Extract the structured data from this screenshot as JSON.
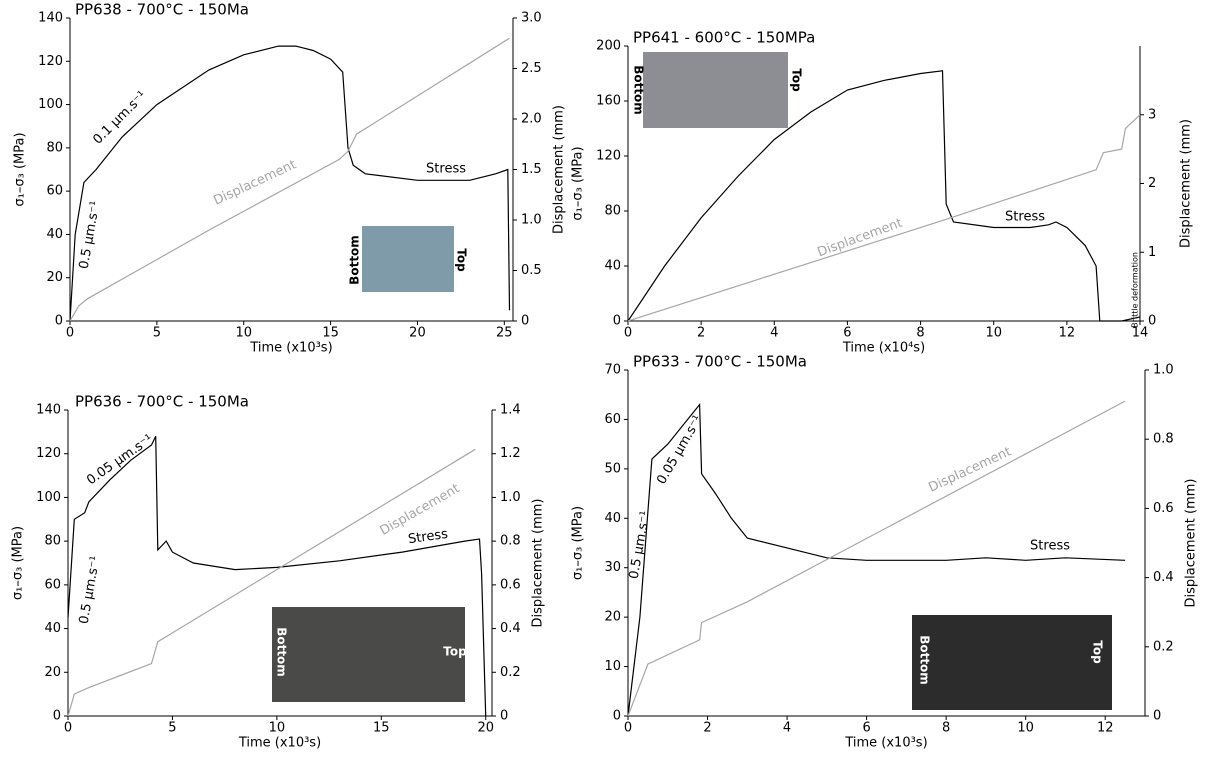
{
  "chart_data": [
    {
      "type": "line",
      "title": "PP638 - 700°C - 150Ma",
      "xlabel": "Time (x10³s)",
      "ylabel": "σ₁–σ₃ (MPa)",
      "y2label": "Displacement (mm)",
      "xlim": [
        0,
        25.5
      ],
      "xticks": [
        0,
        5,
        10,
        15,
        20,
        25
      ],
      "ylim": [
        0,
        140
      ],
      "yticks": [
        0,
        20,
        40,
        60,
        80,
        100,
        120,
        140
      ],
      "y2lim": [
        0,
        3
      ],
      "y2ticks": [
        0,
        0.5,
        {
          "value": 1,
          "label": "1.0"
        },
        1.5,
        {
          "value": 2,
          "label": "2.0"
        },
        2.5,
        {
          "value": 3,
          "label": "3.0"
        }
      ],
      "series": [
        {
          "name": "Stress",
          "color": "#000000",
          "x": [
            0,
            0.3,
            0.8,
            1.5,
            3,
            5,
            8,
            10,
            12,
            13,
            14,
            15,
            15.7,
            16,
            16.3,
            17,
            20,
            23,
            24.5,
            25.2,
            25.3
          ],
          "values": [
            0,
            40,
            64,
            70,
            85,
            100,
            116,
            123,
            127,
            127,
            125,
            121,
            115,
            80,
            72,
            68,
            65,
            65,
            68,
            70,
            5
          ]
        },
        {
          "name": "Displacement",
          "color": "#a6a6a6",
          "axis": "y2",
          "x": [
            0,
            0.5,
            1,
            8,
            15.5,
            16,
            16.5,
            25.3
          ],
          "values": [
            0,
            0.15,
            0.22,
            0.9,
            1.6,
            1.68,
            1.85,
            2.8
          ]
        }
      ],
      "annotations": [
        "0.1 µm.s⁻¹",
        "0.5 µm.s⁻¹",
        "Bottom",
        "Top"
      ]
    },
    {
      "type": "line",
      "title": "PP641 - 600°C - 150MPa",
      "xlabel": "Time (x10⁴s)",
      "ylabel": "σ₁–σ₃ (MPa)",
      "y2label": "Displacement (mm)",
      "xlim": [
        0,
        14
      ],
      "xticks": [
        0,
        2,
        4,
        6,
        8,
        10,
        12,
        14
      ],
      "ylim": [
        0,
        200
      ],
      "yticks": [
        0,
        40,
        80,
        120,
        160,
        200
      ],
      "y2lim": [
        0,
        4
      ],
      "y2ticks": [
        0,
        1,
        2,
        3
      ],
      "series": [
        {
          "name": "Stress",
          "color": "#000000",
          "x": [
            0,
            1,
            2,
            3,
            4,
            5,
            6,
            7,
            8,
            8.6,
            8.7,
            8.9,
            10,
            11,
            11.5,
            11.7,
            12,
            12.5,
            12.8,
            12.9,
            13.5,
            14
          ],
          "values": [
            0,
            40,
            75,
            105,
            132,
            152,
            168,
            175,
            180,
            182,
            85,
            72,
            68,
            68,
            70,
            72,
            68,
            55,
            40,
            0,
            0,
            3
          ]
        },
        {
          "name": "Displacement",
          "color": "#a6a6a6",
          "axis": "y2",
          "x": [
            0,
            8.7,
            12.8,
            13,
            13.5,
            13.6,
            14
          ],
          "values": [
            0,
            1.48,
            2.2,
            2.45,
            2.5,
            2.8,
            3
          ]
        }
      ],
      "annotations": [
        "Bottom",
        "Top",
        "Brittle deformation"
      ]
    },
    {
      "type": "line",
      "title": "PP636 - 700°C - 150Ma",
      "xlabel": "Time (x10³s)",
      "ylabel": "σ₁–σ₃ (MPa)",
      "y2label": "Displacement (mm)",
      "xlim": [
        0,
        20.3
      ],
      "xticks": [
        0,
        5,
        10,
        15,
        20
      ],
      "ylim": [
        0,
        140
      ],
      "yticks": [
        0,
        20,
        40,
        60,
        80,
        100,
        120,
        140
      ],
      "y2lim": [
        0,
        1.4
      ],
      "y2ticks": [
        0,
        0.2,
        0.4,
        0.6,
        0.8,
        {
          "value": 1,
          "label": "1.0"
        },
        1.2,
        1.4
      ],
      "series": [
        {
          "name": "Stress",
          "color": "#000000",
          "x": [
            0,
            0.3,
            0.8,
            1,
            2,
            3,
            4,
            4.2,
            4.3,
            4.7,
            5,
            6,
            8,
            10,
            13,
            16,
            19,
            19.7,
            19.8,
            20
          ],
          "values": [
            45,
            90,
            93,
            98,
            108,
            117,
            124,
            128,
            76,
            80,
            75,
            70,
            67,
            68,
            71,
            75,
            80,
            81,
            65,
            0
          ]
        },
        {
          "name": "Displacement",
          "color": "#a6a6a6",
          "axis": "y2",
          "x": [
            0,
            0.3,
            1,
            4,
            4.3,
            5,
            19.5
          ],
          "values": [
            0,
            0.1,
            0.13,
            0.24,
            0.34,
            0.38,
            1.22
          ]
        }
      ],
      "annotations": [
        "0.05 µm.s⁻¹",
        "0.5 µm.s⁻¹",
        "Bottom",
        "Top"
      ]
    },
    {
      "type": "line",
      "title": "PP633 - 700°C - 150Ma",
      "xlabel": "Time (x10³s)",
      "ylabel": "σ₁–σ₃ (MPa)",
      "y2label": "Displacement (mm)",
      "xlim": [
        0,
        13
      ],
      "xticks": [
        0,
        2,
        4,
        6,
        8,
        10,
        12
      ],
      "ylim": [
        0,
        70
      ],
      "yticks": [
        0,
        10,
        20,
        30,
        40,
        50,
        60,
        70
      ],
      "y2lim": [
        0,
        1
      ],
      "y2ticks": [
        0,
        0.2,
        0.4,
        0.6,
        0.8,
        {
          "value": 1,
          "label": "1.0"
        }
      ],
      "series": [
        {
          "name": "Stress",
          "color": "#000000",
          "x": [
            0,
            0.3,
            0.6,
            1,
            1.5,
            1.8,
            1.85,
            2.2,
            2.6,
            3,
            4,
            5,
            6,
            8,
            9,
            10,
            11,
            12.5
          ],
          "values": [
            0,
            20,
            52,
            55,
            60,
            63,
            49,
            45,
            40,
            36,
            34,
            32,
            31.5,
            31.5,
            32,
            31.5,
            32,
            31.5
          ]
        },
        {
          "name": "Displacement",
          "color": "#a6a6a6",
          "axis": "y2",
          "x": [
            0,
            0.5,
            1.8,
            1.85,
            3,
            12.5
          ],
          "values": [
            0,
            0.15,
            0.22,
            0.27,
            0.33,
            0.91
          ]
        }
      ],
      "annotations": [
        "0.05 µm.s⁻¹",
        "0.5 µm.s⁻¹",
        "Bottom",
        "Top"
      ]
    }
  ]
}
